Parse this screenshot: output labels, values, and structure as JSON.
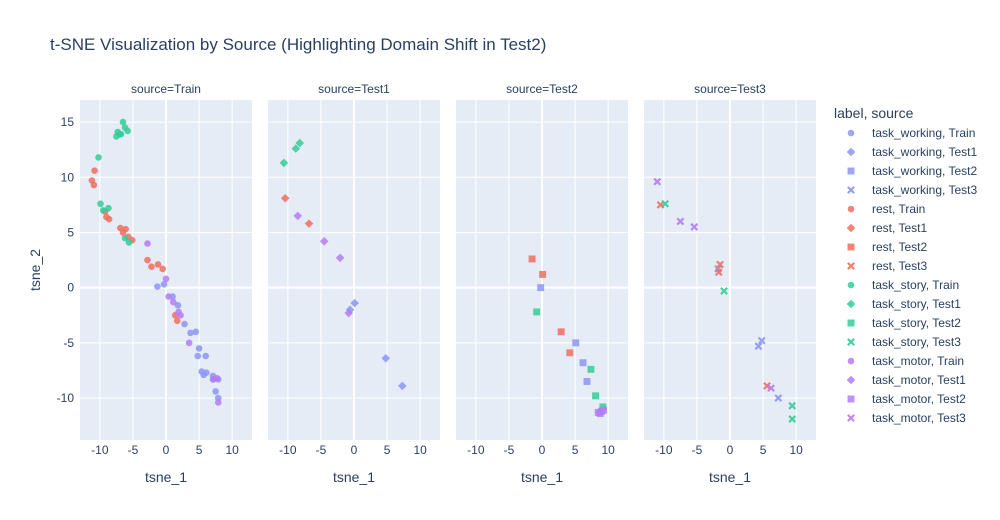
{
  "chart_data": {
    "type": "scatter",
    "title": "t-SNE Visualization by Source (Highlighting Domain Shift in Test2)",
    "xlabel": "tsne_1",
    "ylabel": "tsne_2",
    "xlim": [
      -13,
      13
    ],
    "ylim": [
      -13.8,
      17
    ],
    "xticks": [
      -10,
      -5,
      0,
      5,
      10
    ],
    "yticks": [
      -10,
      -5,
      0,
      5,
      10,
      15
    ],
    "grid": true,
    "legend_title": "label, source",
    "legend_position": "right",
    "colors": {
      "task_working": "#8d95f5",
      "rest": "#ef6f5e",
      "task_story": "#33cc96",
      "task_motor": "#b57cf5",
      "panel_bg": "#e5ecf6",
      "grid": "#ffffff",
      "text": "#2a3f5f"
    },
    "facets": [
      {
        "label": "source=Train",
        "symbol": "circle"
      },
      {
        "label": "source=Test1",
        "symbol": "diamond"
      },
      {
        "label": "source=Test2",
        "symbol": "square"
      },
      {
        "label": "source=Test3",
        "symbol": "x"
      }
    ],
    "series": [
      {
        "name": "task_working, Train",
        "label": "task_working",
        "facet": 0,
        "points": [
          [
            -1.3,
            0.1
          ],
          [
            -0.3,
            0.3
          ],
          [
            1.0,
            -0.8
          ],
          [
            1.8,
            -1.6
          ],
          [
            2.8,
            -3.3
          ],
          [
            3.7,
            -4.1
          ],
          [
            4.5,
            -4.0
          ],
          [
            4.8,
            -6.2
          ],
          [
            5.0,
            -5.5
          ],
          [
            5.4,
            -7.6
          ],
          [
            5.7,
            -7.9
          ],
          [
            6.0,
            -6.2
          ],
          [
            6.1,
            -7.7
          ],
          [
            7.1,
            -8.0
          ],
          [
            7.2,
            -8.3
          ],
          [
            7.5,
            -9.4
          ],
          [
            7.9,
            -8.3
          ],
          [
            7.9,
            -10.0
          ]
        ]
      },
      {
        "name": "task_working, Test1",
        "label": "task_working",
        "facet": 1,
        "points": [
          [
            0.1,
            -1.4
          ],
          [
            -0.6,
            -2.0
          ],
          [
            4.8,
            -6.4
          ],
          [
            7.3,
            -8.9
          ]
        ]
      },
      {
        "name": "task_working, Test2",
        "label": "task_working",
        "facet": 2,
        "points": [
          [
            -0.2,
            0.0
          ],
          [
            5.1,
            -5.0
          ],
          [
            6.2,
            -6.8
          ],
          [
            6.8,
            -8.5
          ]
        ]
      },
      {
        "name": "task_working, Test3",
        "label": "task_working",
        "facet": 3,
        "points": [
          [
            -1.8,
            1.7
          ],
          [
            4.3,
            -5.3
          ],
          [
            4.8,
            -4.8
          ],
          [
            7.3,
            -10.0
          ]
        ]
      },
      {
        "name": "rest, Train",
        "label": "rest",
        "facet": 0,
        "points": [
          [
            -10.8,
            10.6
          ],
          [
            -11.2,
            9.7
          ],
          [
            -10.9,
            9.3
          ],
          [
            -9.2,
            6.9
          ],
          [
            -9.0,
            6.4
          ],
          [
            -8.6,
            6.2
          ],
          [
            -6.9,
            5.4
          ],
          [
            -6.5,
            5.0
          ],
          [
            -6.1,
            5.3
          ],
          [
            -5.7,
            4.6
          ],
          [
            -5.1,
            4.3
          ],
          [
            -2.8,
            2.5
          ],
          [
            -2.2,
            1.9
          ],
          [
            -1.2,
            2.1
          ],
          [
            -0.5,
            1.7
          ],
          [
            1.4,
            -2.5
          ],
          [
            1.7,
            -3.0
          ]
        ]
      },
      {
        "name": "rest, Test1",
        "label": "rest",
        "facet": 1,
        "points": [
          [
            -10.4,
            8.1
          ],
          [
            -6.8,
            5.8
          ]
        ]
      },
      {
        "name": "rest, Test2",
        "label": "rest",
        "facet": 2,
        "points": [
          [
            -1.5,
            2.6
          ],
          [
            0.1,
            1.2
          ],
          [
            2.9,
            -4.0
          ],
          [
            4.2,
            -5.9
          ]
        ]
      },
      {
        "name": "rest, Test3",
        "label": "rest",
        "facet": 3,
        "points": [
          [
            -10.5,
            7.5
          ],
          [
            -1.5,
            2.1
          ],
          [
            -1.7,
            1.4
          ],
          [
            5.6,
            -8.9
          ]
        ]
      },
      {
        "name": "task_story, Train",
        "label": "task_story",
        "facet": 0,
        "points": [
          [
            -10.2,
            11.8
          ],
          [
            -9.9,
            7.6
          ],
          [
            -9.5,
            7.0
          ],
          [
            -8.7,
            7.2
          ],
          [
            -7.5,
            13.7
          ],
          [
            -7.3,
            14.1
          ],
          [
            -7.0,
            13.9
          ],
          [
            -6.8,
            13.9
          ],
          [
            -6.5,
            15.0
          ],
          [
            -6.2,
            14.5
          ],
          [
            -5.8,
            14.2
          ],
          [
            -6.2,
            4.5
          ],
          [
            -5.6,
            4.1
          ]
        ]
      },
      {
        "name": "task_story, Test1",
        "label": "task_story",
        "facet": 1,
        "points": [
          [
            -10.6,
            11.3
          ],
          [
            -8.8,
            12.6
          ],
          [
            -8.2,
            13.1
          ]
        ]
      },
      {
        "name": "task_story, Test2",
        "label": "task_story",
        "facet": 2,
        "points": [
          [
            -0.8,
            -2.2
          ],
          [
            7.4,
            -7.4
          ],
          [
            8.1,
            -9.8
          ],
          [
            9.2,
            -10.8
          ]
        ]
      },
      {
        "name": "task_story, Test3",
        "label": "task_story",
        "facet": 3,
        "points": [
          [
            -9.8,
            7.6
          ],
          [
            -0.9,
            -0.3
          ],
          [
            9.4,
            -10.7
          ],
          [
            9.4,
            -11.9
          ]
        ]
      },
      {
        "name": "task_motor, Train",
        "label": "task_motor",
        "facet": 0,
        "points": [
          [
            -2.8,
            4.0
          ],
          [
            0.0,
            0.8
          ],
          [
            0.4,
            -0.8
          ],
          [
            1.1,
            -1.3
          ],
          [
            1.9,
            -2.2
          ],
          [
            2.2,
            -2.5
          ],
          [
            3.5,
            -5.0
          ],
          [
            7.1,
            -8.3
          ],
          [
            7.7,
            -8.2
          ],
          [
            7.9,
            -10.4
          ]
        ]
      },
      {
        "name": "task_motor, Test1",
        "label": "task_motor",
        "facet": 1,
        "points": [
          [
            -8.5,
            6.5
          ],
          [
            -4.5,
            4.2
          ],
          [
            -2.1,
            2.7
          ],
          [
            -0.8,
            -2.3
          ]
        ]
      },
      {
        "name": "task_motor, Test2",
        "label": "task_motor",
        "facet": 2,
        "points": [
          [
            8.5,
            -11.3
          ],
          [
            9.0,
            -11.2
          ],
          [
            9.3,
            -11.1
          ],
          [
            8.8,
            -11.4
          ]
        ]
      },
      {
        "name": "task_motor, Test3",
        "label": "task_motor",
        "facet": 3,
        "points": [
          [
            -11.0,
            9.6
          ],
          [
            -7.5,
            6.0
          ],
          [
            -5.4,
            5.5
          ],
          [
            6.2,
            -9.1
          ]
        ]
      }
    ]
  }
}
